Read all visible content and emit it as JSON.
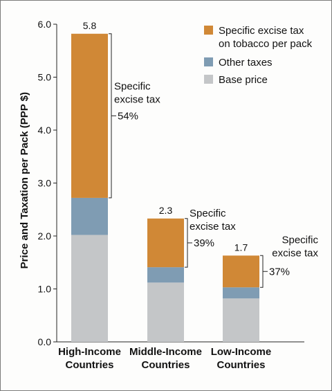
{
  "chart_data": {
    "type": "bar",
    "stacked": true,
    "ylabel": "Price and Taxation per Pack (PPP $)",
    "ylim": [
      0,
      6
    ],
    "yticks": [
      "0.0",
      "1.0",
      "2.0",
      "3.0",
      "4.0",
      "5.0",
      "6.0"
    ],
    "categories": [
      [
        "High-Income",
        "Countries"
      ],
      [
        "Middle-Income",
        "Countries"
      ],
      [
        "Low-Income",
        "Countries"
      ]
    ],
    "series": [
      {
        "name": "Base price",
        "color": "#c4c6c8",
        "values": [
          2.02,
          1.12,
          0.82
        ]
      },
      {
        "name": "Other taxes",
        "color": "#7f9cb3",
        "values": [
          0.7,
          0.29,
          0.21
        ]
      },
      {
        "name": "Specific excise tax on tobacco per pack",
        "color": "#d08836",
        "values": [
          3.1,
          0.92,
          0.6
        ]
      }
    ],
    "totals": [
      "5.8",
      "2.3",
      "1.7"
    ],
    "annotations": [
      {
        "lines": [
          "Specific",
          "excise tax"
        ],
        "percent": "54%"
      },
      {
        "lines": [
          "Specific",
          "excise tax"
        ],
        "percent": "39%"
      },
      {
        "lines": [
          "Specific",
          "excise tax"
        ],
        "percent": "37%"
      }
    ],
    "legend": {
      "position": "top-right",
      "items": [
        {
          "lines": [
            "Specific excise tax",
            "on tobacco per pack"
          ],
          "color": "#d08836"
        },
        {
          "lines": [
            "Other taxes"
          ],
          "color": "#7f9cb3"
        },
        {
          "lines": [
            "Base price"
          ],
          "color": "#c4c6c8"
        }
      ]
    }
  }
}
